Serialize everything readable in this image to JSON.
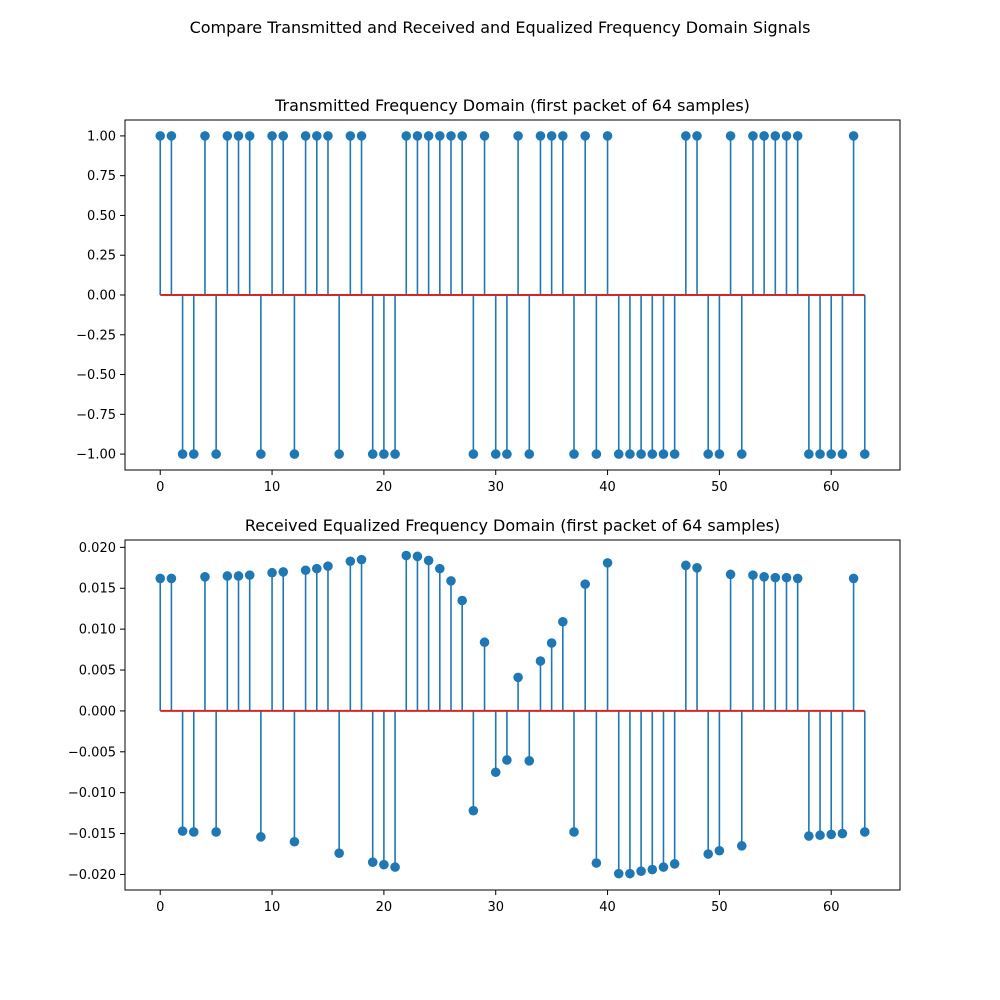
{
  "figure_title": "Compare Transmitted and Received and Equalized Frequency Domain Signals",
  "colors": {
    "stem": "#1f77b4",
    "baseline": "#d62728",
    "frame": "#000000"
  },
  "chart_data": [
    {
      "type": "stem",
      "title": "Transmitted Frequency Domain (first packet of 64 samples)",
      "xlabel": "",
      "ylabel": "",
      "xlim": [
        -3.15,
        66.15
      ],
      "ylim": [
        -1.1,
        1.1
      ],
      "xticks": [
        0,
        10,
        20,
        30,
        40,
        50,
        60
      ],
      "xtick_labels": [
        "0",
        "10",
        "20",
        "30",
        "40",
        "50",
        "60"
      ],
      "yticks": [
        1.0,
        0.75,
        0.5,
        0.25,
        0.0,
        -0.25,
        -0.5,
        -0.75,
        -1.0
      ],
      "ytick_labels": [
        "1.00",
        "0.75",
        "0.50",
        "0.25",
        "0.00",
        "−0.25",
        "−0.50",
        "−0.75",
        "−1.00"
      ],
      "baseline": 0,
      "x": [
        0,
        1,
        2,
        3,
        4,
        5,
        6,
        7,
        8,
        9,
        10,
        11,
        12,
        13,
        14,
        15,
        16,
        17,
        18,
        19,
        20,
        21,
        22,
        23,
        24,
        25,
        26,
        27,
        28,
        29,
        30,
        31,
        32,
        33,
        34,
        35,
        36,
        37,
        38,
        39,
        40,
        41,
        42,
        43,
        44,
        45,
        46,
        47,
        48,
        49,
        50,
        51,
        52,
        53,
        54,
        55,
        56,
        57,
        58,
        59,
        60,
        61,
        62,
        63
      ],
      "values": [
        1,
        1,
        -1,
        -1,
        1,
        -1,
        1,
        1,
        1,
        -1,
        1,
        1,
        -1,
        1,
        1,
        1,
        -1,
        1,
        1,
        -1,
        -1,
        -1,
        1,
        1,
        1,
        1,
        1,
        1,
        -1,
        1,
        -1,
        -1,
        1,
        -1,
        1,
        1,
        1,
        -1,
        1,
        -1,
        1,
        -1,
        -1,
        -1,
        -1,
        -1,
        -1,
        1,
        1,
        -1,
        -1,
        1,
        -1,
        1,
        1,
        1,
        1,
        1,
        -1,
        -1,
        -1,
        -1,
        1,
        -1
      ]
    },
    {
      "type": "stem",
      "title": "Received Equalized Frequency Domain (first packet of 64 samples)",
      "xlabel": "",
      "ylabel": "",
      "xlim": [
        -3.15,
        66.15
      ],
      "ylim": [
        -0.0219,
        0.0209
      ],
      "xticks": [
        0,
        10,
        20,
        30,
        40,
        50,
        60
      ],
      "xtick_labels": [
        "0",
        "10",
        "20",
        "30",
        "40",
        "50",
        "60"
      ],
      "yticks": [
        0.02,
        0.015,
        0.01,
        0.005,
        0.0,
        -0.005,
        -0.01,
        -0.015,
        -0.02
      ],
      "ytick_labels": [
        "0.020",
        "0.015",
        "0.010",
        "0.005",
        "0.000",
        "−0.005",
        "−0.010",
        "−0.015",
        "−0.020"
      ],
      "baseline": 0,
      "x": [
        0,
        1,
        2,
        3,
        4,
        5,
        6,
        7,
        8,
        9,
        10,
        11,
        12,
        13,
        14,
        15,
        16,
        17,
        18,
        19,
        20,
        21,
        22,
        23,
        24,
        25,
        26,
        27,
        28,
        29,
        30,
        31,
        32,
        33,
        34,
        35,
        36,
        37,
        38,
        39,
        40,
        41,
        42,
        43,
        44,
        45,
        46,
        47,
        48,
        49,
        50,
        51,
        52,
        53,
        54,
        55,
        56,
        57,
        58,
        59,
        60,
        61,
        62,
        63
      ],
      "values": [
        0.0162,
        0.0162,
        -0.0147,
        -0.0148,
        0.0164,
        -0.0148,
        0.0165,
        0.0165,
        0.0166,
        -0.0154,
        0.0169,
        0.017,
        -0.016,
        0.0172,
        0.0174,
        0.0177,
        -0.0174,
        0.0183,
        0.0185,
        -0.0185,
        -0.0188,
        -0.0191,
        0.019,
        0.0189,
        0.0184,
        0.0174,
        0.0159,
        0.0135,
        -0.0122,
        0.0084,
        -0.0075,
        -0.006,
        0.0041,
        -0.0061,
        0.0061,
        0.0083,
        0.0109,
        -0.0148,
        0.0155,
        -0.0186,
        0.0181,
        -0.0199,
        -0.0199,
        -0.0196,
        -0.0194,
        -0.0191,
        -0.0187,
        0.0178,
        0.0175,
        -0.0175,
        -0.0171,
        0.0167,
        -0.0165,
        0.0166,
        0.0164,
        0.0163,
        0.0163,
        0.0162,
        -0.0153,
        -0.0152,
        -0.0151,
        -0.015,
        0.0162,
        -0.0148
      ]
    }
  ]
}
